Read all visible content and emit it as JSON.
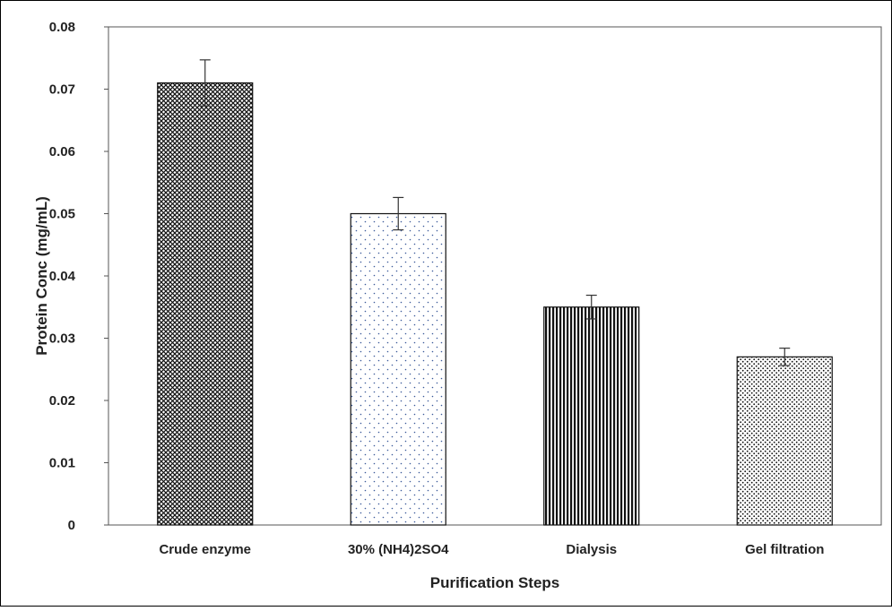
{
  "chart_data": {
    "type": "bar",
    "title": "",
    "xlabel": "Purification Steps",
    "ylabel": "Protein Conc (mg/mL)",
    "ylim": [
      0,
      0.08
    ],
    "yticks": [
      0,
      0.01,
      0.02,
      0.03,
      0.04,
      0.05,
      0.06,
      0.07,
      0.08
    ],
    "ytick_labels": [
      "0",
      "0.01",
      "0.02",
      "0.03",
      "0.04",
      "0.05",
      "0.06",
      "0.07",
      "0.08"
    ],
    "grid": false,
    "legend": "none",
    "categories": [
      "Crude enzyme",
      "30% (NH4)2SO4",
      "Dialysis",
      "Gel filtration"
    ],
    "values": [
      0.071,
      0.05,
      0.035,
      0.027
    ],
    "error": [
      0.0037,
      0.0026,
      0.0019,
      0.0014
    ],
    "patterns": [
      "diamond-cross-hatch",
      "sparse-dots",
      "vertical-lines",
      "dense-dots"
    ],
    "colors": {
      "bar_outline": "#111111",
      "pattern_ink": "#111111",
      "error_bar": "#333333",
      "frame": "#000000",
      "dot_blue": "#3a5a9a"
    }
  }
}
